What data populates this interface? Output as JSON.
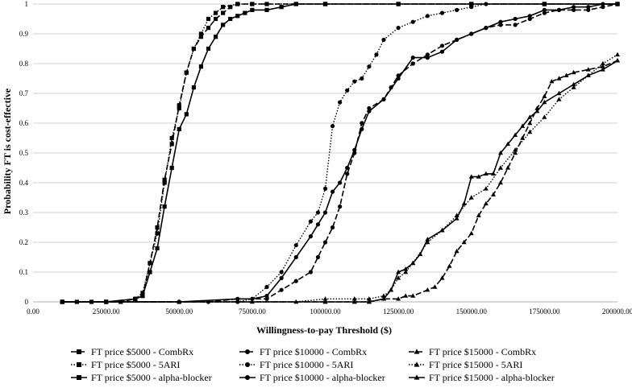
{
  "chart_data": {
    "type": "line",
    "xlabel": "Willingness-to-pay Threshold ($)",
    "ylabel": "Probability FT is cost-effective",
    "xlim": [
      0,
      200000
    ],
    "ylim": [
      0,
      1
    ],
    "x_ticks": [
      0,
      25000,
      50000,
      75000,
      100000,
      125000,
      150000,
      175000,
      200000
    ],
    "x_tick_labels": [
      "0.00",
      "25000.00",
      "50000.00",
      "75000.00",
      "100000.00",
      "125000.00",
      "150000.00",
      "175000.00",
      "200000.00"
    ],
    "y_ticks": [
      0,
      0.1,
      0.2,
      0.3,
      0.4,
      0.5,
      0.6,
      0.7,
      0.8,
      0.9,
      1
    ],
    "y_tick_labels": [
      "0",
      "0.1",
      "0.2",
      "0.3",
      "0.4",
      "0.5",
      "0.6",
      "0.7",
      "0.8",
      "0.9",
      "1"
    ],
    "grid": "horizontal",
    "legend_position": "bottom",
    "series": [
      {
        "name": "FT price $5000 - CombRx",
        "dash": "long-dash",
        "marker": "square",
        "points": [
          [
            10000,
            0
          ],
          [
            15000,
            0
          ],
          [
            20000,
            0
          ],
          [
            25000,
            0
          ],
          [
            30000,
            0
          ],
          [
            35000,
            0.01
          ],
          [
            37500,
            0.02
          ],
          [
            40000,
            0.13
          ],
          [
            42500,
            0.25
          ],
          [
            45000,
            0.41
          ],
          [
            47500,
            0.53
          ],
          [
            50000,
            0.66
          ],
          [
            52500,
            0.77
          ],
          [
            55000,
            0.85
          ],
          [
            57500,
            0.89
          ],
          [
            60000,
            0.92
          ],
          [
            62500,
            0.95
          ],
          [
            65000,
            0.97
          ],
          [
            67500,
            0.99
          ],
          [
            70000,
            1.0
          ],
          [
            75000,
            1.0
          ],
          [
            80000,
            1.0
          ],
          [
            90000,
            1.0
          ],
          [
            100000,
            1.0
          ],
          [
            125000,
            1.0
          ],
          [
            150000,
            1.0
          ],
          [
            175000,
            1.0
          ],
          [
            200000,
            1.0
          ]
        ]
      },
      {
        "name": "FT price $10000 - CombRx",
        "dash": "long-dash",
        "marker": "circle",
        "points": [
          [
            10000,
            0
          ],
          [
            25000,
            0
          ],
          [
            50000,
            0
          ],
          [
            60000,
            0
          ],
          [
            70000,
            0.01
          ],
          [
            75000,
            0.01
          ],
          [
            80000,
            0.01
          ],
          [
            85000,
            0.04
          ],
          [
            90000,
            0.07
          ],
          [
            95000,
            0.1
          ],
          [
            97500,
            0.15
          ],
          [
            100000,
            0.2
          ],
          [
            102500,
            0.25
          ],
          [
            105000,
            0.32
          ],
          [
            107500,
            0.43
          ],
          [
            110000,
            0.5
          ],
          [
            112500,
            0.6
          ],
          [
            115000,
            0.65
          ],
          [
            120000,
            0.68
          ],
          [
            122500,
            0.72
          ],
          [
            125000,
            0.76
          ],
          [
            130000,
            0.8
          ],
          [
            135000,
            0.83
          ],
          [
            140000,
            0.86
          ],
          [
            145000,
            0.88
          ],
          [
            150000,
            0.9
          ],
          [
            155000,
            0.92
          ],
          [
            160000,
            0.93
          ],
          [
            165000,
            0.93
          ],
          [
            170000,
            0.95
          ],
          [
            175000,
            0.97
          ],
          [
            180000,
            0.98
          ],
          [
            185000,
            0.98
          ],
          [
            190000,
            0.98
          ],
          [
            195000,
            0.99
          ],
          [
            200000,
            1.0
          ]
        ]
      },
      {
        "name": "FT price $15000 - CombRx",
        "dash": "long-dash",
        "marker": "triangle",
        "points": [
          [
            10000,
            0
          ],
          [
            25000,
            0
          ],
          [
            50000,
            0
          ],
          [
            75000,
            0
          ],
          [
            100000,
            0
          ],
          [
            110000,
            0
          ],
          [
            115000,
            0
          ],
          [
            120000,
            0.01
          ],
          [
            125000,
            0.01
          ],
          [
            127500,
            0.02
          ],
          [
            130000,
            0.02
          ],
          [
            135000,
            0.04
          ],
          [
            137500,
            0.05
          ],
          [
            140000,
            0.08
          ],
          [
            142500,
            0.12
          ],
          [
            145000,
            0.17
          ],
          [
            147500,
            0.2
          ],
          [
            150000,
            0.23
          ],
          [
            152500,
            0.29
          ],
          [
            155000,
            0.33
          ],
          [
            157500,
            0.36
          ],
          [
            160000,
            0.4
          ],
          [
            162500,
            0.45
          ],
          [
            165000,
            0.5
          ],
          [
            167500,
            0.55
          ],
          [
            170000,
            0.6
          ],
          [
            172500,
            0.65
          ],
          [
            175000,
            0.69
          ],
          [
            177500,
            0.74
          ],
          [
            180000,
            0.75
          ],
          [
            182500,
            0.76
          ],
          [
            185000,
            0.77
          ],
          [
            190000,
            0.78
          ],
          [
            195000,
            0.79
          ],
          [
            200000,
            0.81
          ]
        ]
      },
      {
        "name": "FT price $5000 - 5ARI",
        "dash": "dot",
        "marker": "square",
        "points": [
          [
            10000,
            0
          ],
          [
            25000,
            0
          ],
          [
            35000,
            0.01
          ],
          [
            37500,
            0.03
          ],
          [
            40000,
            0.13
          ],
          [
            42500,
            0.23
          ],
          [
            45000,
            0.4
          ],
          [
            47500,
            0.55
          ],
          [
            50000,
            0.65
          ],
          [
            52500,
            0.77
          ],
          [
            55000,
            0.85
          ],
          [
            57500,
            0.9
          ],
          [
            60000,
            0.95
          ],
          [
            62500,
            0.97
          ],
          [
            65000,
            0.99
          ],
          [
            70000,
            1.0
          ],
          [
            75000,
            1.0
          ],
          [
            100000,
            1.0
          ],
          [
            125000,
            1.0
          ],
          [
            150000,
            1.0
          ],
          [
            175000,
            1.0
          ],
          [
            200000,
            1.0
          ]
        ]
      },
      {
        "name": "FT price $10000 - 5ARI",
        "dash": "dot",
        "marker": "circle",
        "points": [
          [
            10000,
            0
          ],
          [
            50000,
            0
          ],
          [
            70000,
            0
          ],
          [
            75000,
            0.01
          ],
          [
            80000,
            0.05
          ],
          [
            85000,
            0.1
          ],
          [
            90000,
            0.19
          ],
          [
            95000,
            0.27
          ],
          [
            97500,
            0.3
          ],
          [
            100000,
            0.38
          ],
          [
            102500,
            0.59
          ],
          [
            105000,
            0.67
          ],
          [
            107500,
            0.71
          ],
          [
            110000,
            0.74
          ],
          [
            112500,
            0.75
          ],
          [
            115000,
            0.79
          ],
          [
            117500,
            0.83
          ],
          [
            120000,
            0.88
          ],
          [
            125000,
            0.92
          ],
          [
            130000,
            0.94
          ],
          [
            135000,
            0.96
          ],
          [
            140000,
            0.97
          ],
          [
            145000,
            0.98
          ],
          [
            150000,
            0.99
          ],
          [
            155000,
            1.0
          ],
          [
            175000,
            1.0
          ],
          [
            200000,
            1.0
          ]
        ]
      },
      {
        "name": "FT price $15000 - 5ARI",
        "dash": "dot",
        "marker": "triangle",
        "points": [
          [
            10000,
            0
          ],
          [
            50000,
            0
          ],
          [
            90000,
            0
          ],
          [
            100000,
            0.01
          ],
          [
            110000,
            0.01
          ],
          [
            115000,
            0.01
          ],
          [
            120000,
            0.02
          ],
          [
            122500,
            0.04
          ],
          [
            125000,
            0.08
          ],
          [
            127500,
            0.1
          ],
          [
            130000,
            0.13
          ],
          [
            135000,
            0.2
          ],
          [
            140000,
            0.24
          ],
          [
            145000,
            0.29
          ],
          [
            150000,
            0.35
          ],
          [
            155000,
            0.38
          ],
          [
            160000,
            0.45
          ],
          [
            165000,
            0.51
          ],
          [
            170000,
            0.57
          ],
          [
            175000,
            0.62
          ],
          [
            180000,
            0.68
          ],
          [
            185000,
            0.72
          ],
          [
            190000,
            0.76
          ],
          [
            195000,
            0.8
          ],
          [
            200000,
            0.83
          ]
        ]
      },
      {
        "name": "FT price $5000 - alpha-blocker",
        "dash": "solid",
        "marker": "square",
        "points": [
          [
            10000,
            0
          ],
          [
            25000,
            0
          ],
          [
            35000,
            0.01
          ],
          [
            37500,
            0.02
          ],
          [
            40000,
            0.1
          ],
          [
            42500,
            0.18
          ],
          [
            45000,
            0.32
          ],
          [
            47500,
            0.45
          ],
          [
            50000,
            0.58
          ],
          [
            52500,
            0.63
          ],
          [
            55000,
            0.72
          ],
          [
            57500,
            0.79
          ],
          [
            60000,
            0.85
          ],
          [
            62500,
            0.89
          ],
          [
            65000,
            0.93
          ],
          [
            67500,
            0.95
          ],
          [
            70000,
            0.96
          ],
          [
            72500,
            0.97
          ],
          [
            75000,
            0.98
          ],
          [
            80000,
            0.98
          ],
          [
            85000,
            0.99
          ],
          [
            90000,
            1.0
          ],
          [
            100000,
            1.0
          ],
          [
            125000,
            1.0
          ],
          [
            150000,
            1.0
          ],
          [
            175000,
            1.0
          ],
          [
            200000,
            1.0
          ]
        ]
      },
      {
        "name": "FT price $10000 - alpha-blocker",
        "dash": "solid",
        "marker": "circle",
        "points": [
          [
            10000,
            0
          ],
          [
            50000,
            0
          ],
          [
            70000,
            0.01
          ],
          [
            75000,
            0.01
          ],
          [
            80000,
            0.02
          ],
          [
            85000,
            0.08
          ],
          [
            90000,
            0.15
          ],
          [
            95000,
            0.22
          ],
          [
            97500,
            0.26
          ],
          [
            100000,
            0.3
          ],
          [
            102500,
            0.37
          ],
          [
            105000,
            0.4
          ],
          [
            107500,
            0.45
          ],
          [
            110000,
            0.51
          ],
          [
            112500,
            0.58
          ],
          [
            115000,
            0.64
          ],
          [
            120000,
            0.68
          ],
          [
            125000,
            0.75
          ],
          [
            130000,
            0.82
          ],
          [
            135000,
            0.82
          ],
          [
            140000,
            0.84
          ],
          [
            145000,
            0.88
          ],
          [
            150000,
            0.9
          ],
          [
            155000,
            0.92
          ],
          [
            160000,
            0.94
          ],
          [
            165000,
            0.95
          ],
          [
            170000,
            0.96
          ],
          [
            175000,
            0.98
          ],
          [
            180000,
            0.98
          ],
          [
            185000,
            0.99
          ],
          [
            190000,
            0.99
          ],
          [
            195000,
            1.0
          ],
          [
            200000,
            1.0
          ]
        ]
      },
      {
        "name": "FT price $15000 - alpha-blocker",
        "dash": "solid",
        "marker": "triangle",
        "points": [
          [
            10000,
            0
          ],
          [
            50000,
            0
          ],
          [
            100000,
            0
          ],
          [
            110000,
            0
          ],
          [
            115000,
            0
          ],
          [
            120000,
            0.01
          ],
          [
            122500,
            0.04
          ],
          [
            125000,
            0.1
          ],
          [
            127500,
            0.11
          ],
          [
            130000,
            0.13
          ],
          [
            132500,
            0.16
          ],
          [
            135000,
            0.21
          ],
          [
            140000,
            0.24
          ],
          [
            145000,
            0.28
          ],
          [
            147500,
            0.33
          ],
          [
            150000,
            0.42
          ],
          [
            152500,
            0.42
          ],
          [
            155000,
            0.43
          ],
          [
            157500,
            0.43
          ],
          [
            160000,
            0.5
          ],
          [
            162500,
            0.53
          ],
          [
            165000,
            0.56
          ],
          [
            167500,
            0.59
          ],
          [
            170000,
            0.62
          ],
          [
            172500,
            0.64
          ],
          [
            175000,
            0.67
          ],
          [
            180000,
            0.7
          ],
          [
            185000,
            0.73
          ],
          [
            190000,
            0.76
          ],
          [
            195000,
            0.78
          ],
          [
            200000,
            0.81
          ]
        ]
      }
    ]
  }
}
